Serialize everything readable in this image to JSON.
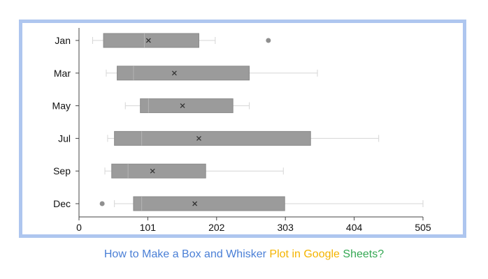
{
  "chart_data": {
    "type": "box",
    "orientation": "horizontal",
    "categories": [
      "Jan",
      "Mar",
      "May",
      "Jul",
      "Sep",
      "Dec"
    ],
    "boxes": [
      {
        "category": "Jan",
        "min": 20,
        "q1": 36,
        "median": 96,
        "mean": 102,
        "q3": 176,
        "max": 200,
        "outliers": [
          278
        ]
      },
      {
        "category": "Mar",
        "min": 40,
        "q1": 56,
        "median": 80,
        "mean": 140,
        "q3": 250,
        "max": 350,
        "outliers": []
      },
      {
        "category": "May",
        "min": 68,
        "q1": 90,
        "median": 102,
        "mean": 152,
        "q3": 226,
        "max": 250,
        "outliers": []
      },
      {
        "category": "Jul",
        "min": 42,
        "q1": 52,
        "median": 92,
        "mean": 176,
        "q3": 340,
        "max": 440,
        "outliers": []
      },
      {
        "category": "Sep",
        "min": 38,
        "q1": 48,
        "median": 72,
        "mean": 108,
        "q3": 186,
        "max": 300,
        "outliers": []
      },
      {
        "category": "Dec",
        "min": 52,
        "q1": 80,
        "median": 92,
        "mean": 170,
        "q3": 302,
        "max": 505,
        "outliers": [
          34
        ]
      }
    ],
    "x_ticks": [
      "0",
      "101",
      "202",
      "303",
      "404",
      "505"
    ],
    "xlim": [
      0,
      505
    ],
    "grid": false,
    "colors": {
      "box_fill": "#9b9b9b",
      "box_stroke": "#8a8a8a",
      "median_line": "#b5b5b5",
      "whisker": "#d6d6d6",
      "mean_marker": "#333333",
      "outlier": "#8f8f8f",
      "axis": "#444444",
      "frame": "#aec6ef"
    }
  },
  "caption": {
    "parts": [
      {
        "text": "How to Make a Box and Whisker ",
        "color": "#4a7fd6"
      },
      {
        "text": "Plot in ",
        "color": "#f4b400"
      },
      {
        "text": "Google ",
        "color": "#f4b400"
      },
      {
        "text": "Sheets?",
        "color": "#34a853"
      }
    ]
  }
}
